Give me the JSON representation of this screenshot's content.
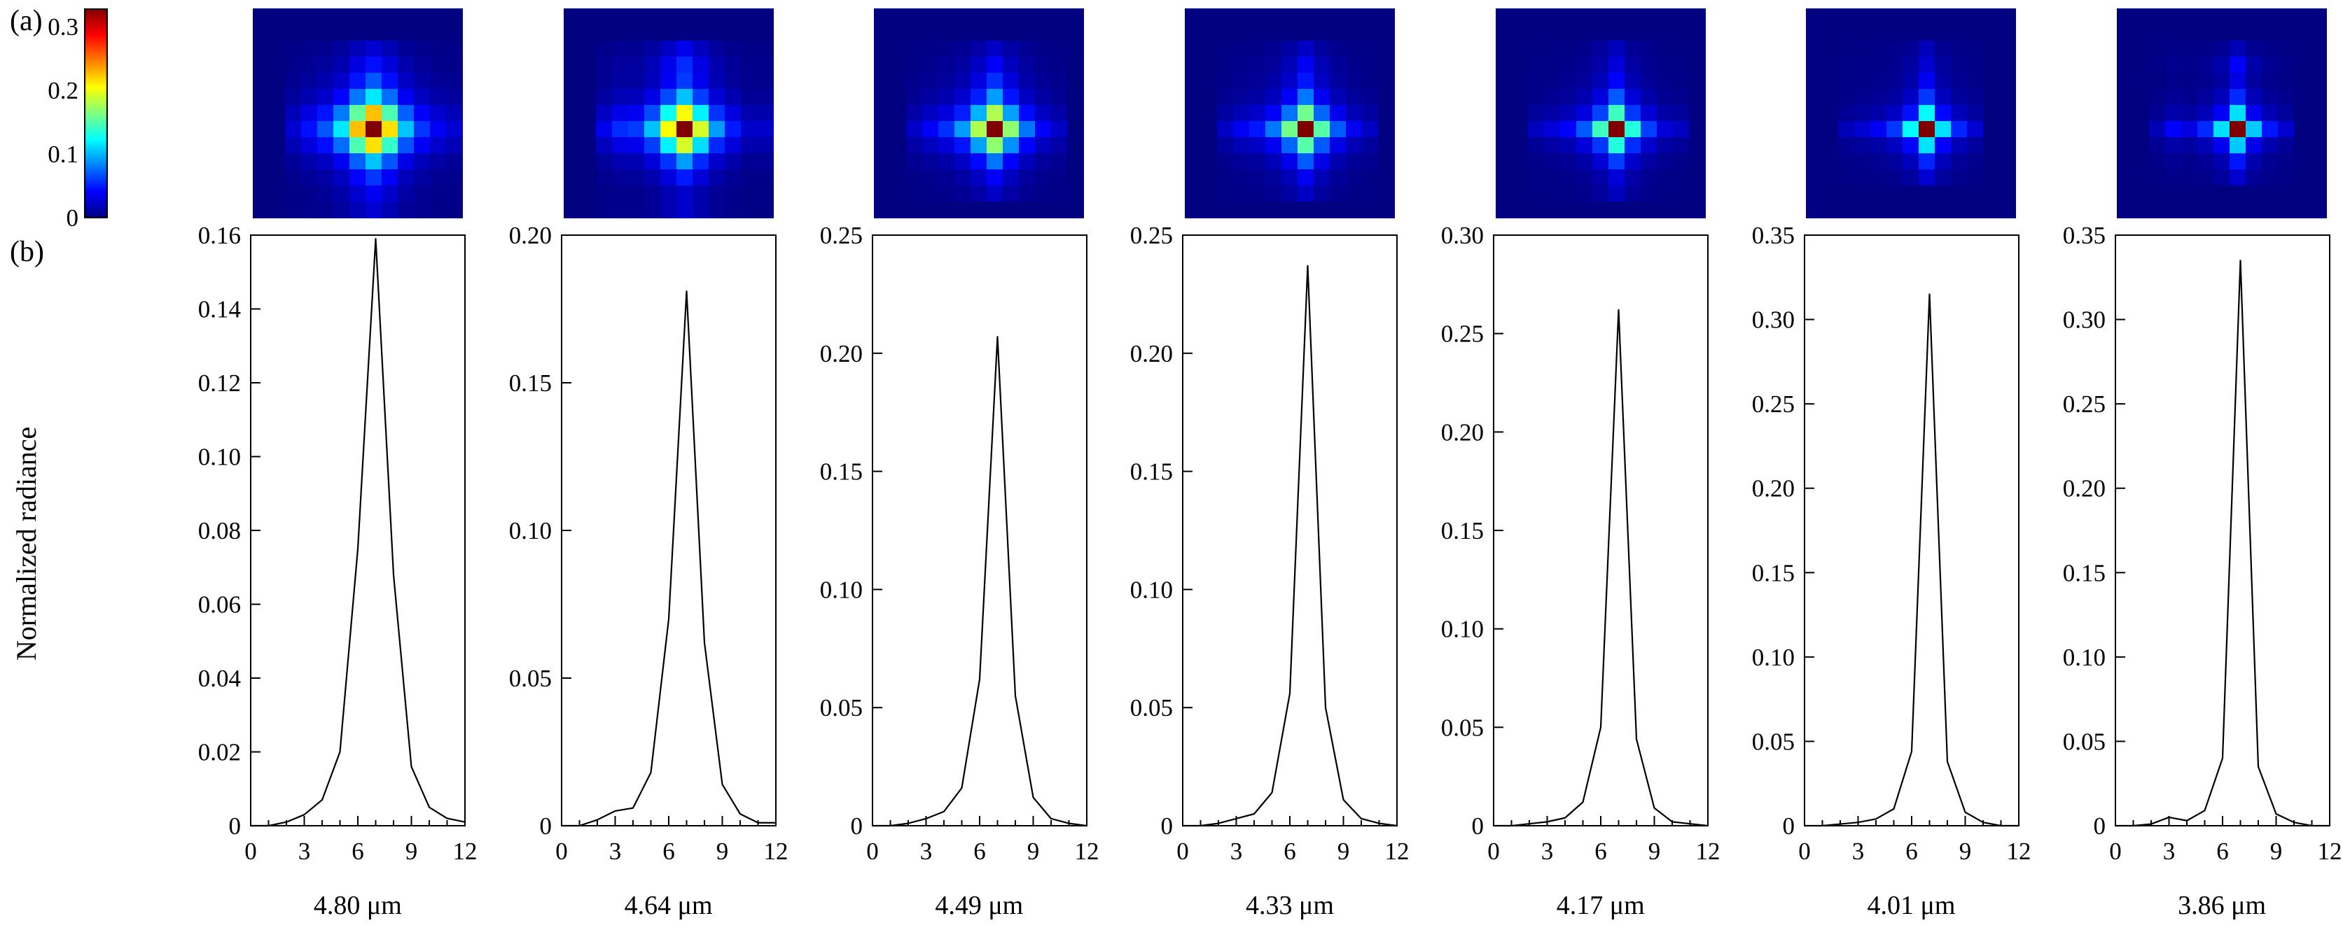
{
  "figure": {
    "panel_a_label": "(a)",
    "panel_b_label": "(b)",
    "colorbar": {
      "max": 0.33,
      "tick_values": [
        0,
        0.1,
        0.2,
        0.3
      ],
      "tick_labels": [
        "0",
        "0.1",
        "0.2",
        "0.3"
      ],
      "colormap": "jet",
      "background_color": "#000080"
    },
    "psf_images": {
      "count": 7,
      "grid_size": 13,
      "colormap": "jet",
      "normalization": "each image normalized to its own peak"
    }
  },
  "chart_data": {
    "type": "line",
    "title": "",
    "ylabel": "Normalized radiance",
    "xlabel": "",
    "x": [
      0,
      1,
      2,
      3,
      4,
      5,
      6,
      7,
      8,
      9,
      10,
      11,
      12
    ],
    "xlim": [
      0,
      12
    ],
    "xtick_values": [
      0,
      3,
      6,
      9,
      12
    ],
    "xtick_labels": [
      "0",
      "3",
      "6",
      "9",
      "12"
    ],
    "grid": false,
    "legend": "none",
    "panels": [
      {
        "label": "4.80 μm",
        "peak": 0.159,
        "ylim": [
          0,
          0.16
        ],
        "ytick_values": [
          0,
          0.02,
          0.04,
          0.06,
          0.08,
          0.1,
          0.12,
          0.14,
          0.16
        ],
        "ytick_labels": [
          "0",
          "0.02",
          "0.04",
          "0.06",
          "0.08",
          "0.10",
          "0.12",
          "0.14",
          "0.16"
        ],
        "values": [
          0,
          0,
          0.001,
          0.003,
          0.007,
          0.02,
          0.075,
          0.159,
          0.068,
          0.016,
          0.005,
          0.002,
          0.001
        ]
      },
      {
        "label": "4.64 μm",
        "peak": 0.181,
        "ylim": [
          0,
          0.2
        ],
        "ytick_values": [
          0,
          0.05,
          0.1,
          0.15,
          0.2
        ],
        "ytick_labels": [
          "0",
          "0.05",
          "0.10",
          "0.15",
          "0.20"
        ],
        "values": [
          0,
          0,
          0.002,
          0.005,
          0.006,
          0.018,
          0.07,
          0.181,
          0.062,
          0.014,
          0.004,
          0.001,
          0.001
        ]
      },
      {
        "label": "4.49 μm",
        "peak": 0.207,
        "ylim": [
          0,
          0.25
        ],
        "ytick_values": [
          0,
          0.05,
          0.1,
          0.15,
          0.2,
          0.25
        ],
        "ytick_labels": [
          "0",
          "0.05",
          "0.10",
          "0.15",
          "0.20",
          "0.25"
        ],
        "values": [
          0,
          0,
          0.001,
          0.003,
          0.006,
          0.016,
          0.062,
          0.207,
          0.055,
          0.012,
          0.003,
          0.001,
          0
        ]
      },
      {
        "label": "4.33 μm",
        "peak": 0.237,
        "ylim": [
          0,
          0.25
        ],
        "ytick_values": [
          0,
          0.05,
          0.1,
          0.15,
          0.2,
          0.25
        ],
        "ytick_labels": [
          "0",
          "0.05",
          "0.10",
          "0.15",
          "0.20",
          "0.25"
        ],
        "values": [
          0,
          0,
          0.001,
          0.003,
          0.005,
          0.014,
          0.056,
          0.237,
          0.05,
          0.011,
          0.003,
          0.001,
          0
        ]
      },
      {
        "label": "4.17 μm",
        "peak": 0.262,
        "ylim": [
          0,
          0.3
        ],
        "ytick_values": [
          0,
          0.05,
          0.1,
          0.15,
          0.2,
          0.25,
          0.3
        ],
        "ytick_labels": [
          "0",
          "0.05",
          "0.10",
          "0.15",
          "0.20",
          "0.25",
          "0.30"
        ],
        "values": [
          0,
          0,
          0.001,
          0.002,
          0.004,
          0.012,
          0.05,
          0.262,
          0.044,
          0.009,
          0.002,
          0.001,
          0
        ]
      },
      {
        "label": "4.01 μm",
        "peak": 0.315,
        "ylim": [
          0,
          0.35
        ],
        "ytick_values": [
          0,
          0.05,
          0.1,
          0.15,
          0.2,
          0.25,
          0.3,
          0.35
        ],
        "ytick_labels": [
          "0",
          "0.05",
          "0.10",
          "0.15",
          "0.20",
          "0.25",
          "0.30",
          "0.35"
        ],
        "values": [
          0,
          0,
          0.001,
          0.002,
          0.004,
          0.01,
          0.044,
          0.315,
          0.038,
          0.008,
          0.002,
          0,
          0
        ]
      },
      {
        "label": "3.86 μm",
        "peak": 0.335,
        "ylim": [
          0,
          0.35
        ],
        "ytick_values": [
          0,
          0.05,
          0.1,
          0.15,
          0.2,
          0.25,
          0.3,
          0.35
        ],
        "ytick_labels": [
          "0",
          "0.05",
          "0.10",
          "0.15",
          "0.20",
          "0.25",
          "0.30",
          "0.35"
        ],
        "values": [
          0,
          0,
          0.001,
          0.005,
          0.003,
          0.009,
          0.04,
          0.335,
          0.035,
          0.007,
          0.002,
          0,
          0
        ]
      }
    ]
  }
}
